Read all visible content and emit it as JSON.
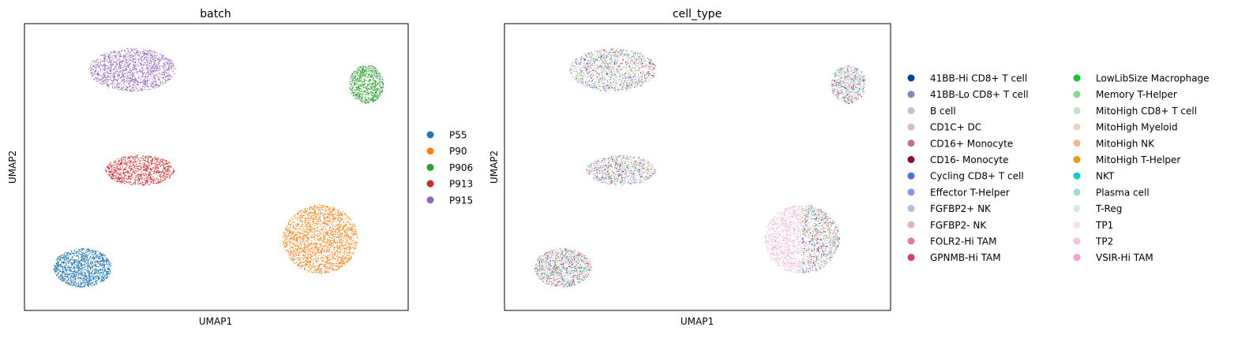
{
  "chart_data": [
    {
      "type": "scatter",
      "title": "batch",
      "xlabel": "UMAP1",
      "ylabel": "UMAP2",
      "grid": false,
      "legend": "outside-right",
      "categories": [
        {
          "name": "P55",
          "color": "#1f77b4"
        },
        {
          "name": "P90",
          "color": "#ff7f0e"
        },
        {
          "name": "P906",
          "color": "#2ca02c"
        },
        {
          "name": "P913",
          "color": "#d62728"
        },
        {
          "name": "P915",
          "color": "#9467bd"
        }
      ],
      "clusters": [
        {
          "category": "P915",
          "center": [
            0.28,
            0.84
          ],
          "spread": [
            0.15,
            0.1
          ]
        },
        {
          "category": "P906",
          "center": [
            0.89,
            0.79
          ],
          "spread": [
            0.06,
            0.09
          ]
        },
        {
          "category": "P913",
          "center": [
            0.3,
            0.49
          ],
          "spread": [
            0.12,
            0.07
          ]
        },
        {
          "category": "P90",
          "center": [
            0.77,
            0.25
          ],
          "spread": [
            0.13,
            0.16
          ]
        },
        {
          "category": "P55",
          "center": [
            0.15,
            0.15
          ],
          "spread": [
            0.1,
            0.09
          ]
        }
      ]
    },
    {
      "type": "scatter",
      "title": "cell_type",
      "xlabel": "UMAP1",
      "ylabel": "UMAP2",
      "grid": false,
      "legend": "outside-right",
      "categories": [
        {
          "name": "41BB-Hi CD8+ T cell",
          "color": "#023fa5"
        },
        {
          "name": "41BB-Lo CD8+ T cell",
          "color": "#7d87b9"
        },
        {
          "name": "B cell",
          "color": "#bec1d4"
        },
        {
          "name": "CD1C+ DC",
          "color": "#d6bcc0"
        },
        {
          "name": "CD16+ Monocyte",
          "color": "#bb7784"
        },
        {
          "name": "CD16- Monocyte",
          "color": "#8e063b"
        },
        {
          "name": "Cycling CD8+ T cell",
          "color": "#4a6fe3"
        },
        {
          "name": "Effector T-Helper",
          "color": "#8595e1"
        },
        {
          "name": "FGFBP2+ NK",
          "color": "#b5bbe3"
        },
        {
          "name": "FGFBP2- NK",
          "color": "#e6afb9"
        },
        {
          "name": "FOLR2-Hi TAM",
          "color": "#e07b91"
        },
        {
          "name": "GPNMB-Hi TAM",
          "color": "#d33f6a"
        },
        {
          "name": "LowLibSize Macrophage",
          "color": "#11c638"
        },
        {
          "name": "Memory T-Helper",
          "color": "#8dd593"
        },
        {
          "name": "MitoHigh CD8+ T cell",
          "color": "#c6dec7"
        },
        {
          "name": "MitoHigh Myeloid",
          "color": "#ead3c6"
        },
        {
          "name": "MitoHigh NK",
          "color": "#f0b98d"
        },
        {
          "name": "MitoHigh T-Helper",
          "color": "#ef9708"
        },
        {
          "name": "NKT",
          "color": "#0fcfc0"
        },
        {
          "name": "Plasma cell",
          "color": "#9cded6"
        },
        {
          "name": "T-Reg",
          "color": "#d5eae7"
        },
        {
          "name": "TP1",
          "color": "#f3e1eb"
        },
        {
          "name": "TP2",
          "color": "#f6c4e1"
        },
        {
          "name": "VSIR-Hi TAM",
          "color": "#f79cd4"
        }
      ]
    }
  ]
}
